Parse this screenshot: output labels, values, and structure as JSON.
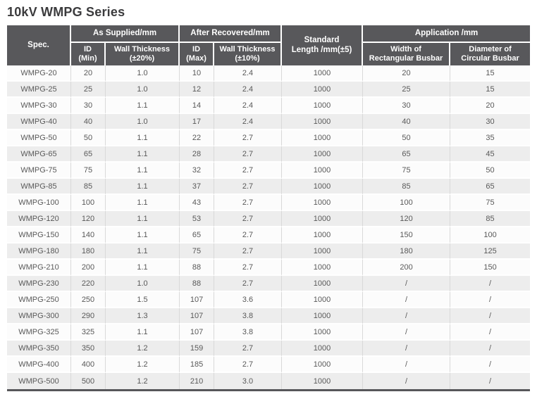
{
  "page": {
    "title": "10kV WMPG Series"
  },
  "colors": {
    "header_bg": "#58585B",
    "header_text": "#FFFFFF",
    "row_odd_bg": "#FCFCFC",
    "row_even_bg": "#EDEDED",
    "body_text": "#595959",
    "title_text": "#3B3B3D",
    "bottom_rule": "#57575A"
  },
  "table": {
    "header": {
      "spec": "Spec.",
      "as_supplied": "As Supplied/mm",
      "after_recovered": "After Recovered/mm",
      "standard_length": "Standard\nLength /mm(±5)",
      "application": "Application /mm",
      "id_min": "ID\n(Min)",
      "wall_thickness_20": "Wall Thickness\n(±20%)",
      "id_max": "ID\n(Max)",
      "wall_thickness_10": "Wall Thickness\n(±10%)",
      "width_rect_busbar": "Width of\nRectangular Busbar",
      "dia_circ_busbar": "Diameter of\nCircular Busbar"
    },
    "columns": [
      "spec",
      "id_min",
      "wall_thickness_20",
      "id_max",
      "wall_thickness_10",
      "standard_length",
      "width_rect_busbar",
      "dia_circ_busbar"
    ],
    "rows": [
      [
        "WMPG-20",
        "20",
        "1.0",
        "10",
        "2.4",
        "1000",
        "20",
        "15"
      ],
      [
        "WMPG-25",
        "25",
        "1.0",
        "12",
        "2.4",
        "1000",
        "25",
        "15"
      ],
      [
        "WMPG-30",
        "30",
        "1.1",
        "14",
        "2.4",
        "1000",
        "30",
        "20"
      ],
      [
        "WMPG-40",
        "40",
        "1.0",
        "17",
        "2.4",
        "1000",
        "40",
        "30"
      ],
      [
        "WMPG-50",
        "50",
        "1.1",
        "22",
        "2.7",
        "1000",
        "50",
        "35"
      ],
      [
        "WMPG-65",
        "65",
        "1.1",
        "28",
        "2.7",
        "1000",
        "65",
        "45"
      ],
      [
        "WMPG-75",
        "75",
        "1.1",
        "32",
        "2.7",
        "1000",
        "75",
        "50"
      ],
      [
        "WMPG-85",
        "85",
        "1.1",
        "37",
        "2.7",
        "1000",
        "85",
        "65"
      ],
      [
        "WMPG-100",
        "100",
        "1.1",
        "43",
        "2.7",
        "1000",
        "100",
        "75"
      ],
      [
        "WMPG-120",
        "120",
        "1.1",
        "53",
        "2.7",
        "1000",
        "120",
        "85"
      ],
      [
        "WMPG-150",
        "140",
        "1.1",
        "65",
        "2.7",
        "1000",
        "150",
        "100"
      ],
      [
        "WMPG-180",
        "180",
        "1.1",
        "75",
        "2.7",
        "1000",
        "180",
        "125"
      ],
      [
        "WMPG-210",
        "200",
        "1.1",
        "88",
        "2.7",
        "1000",
        "200",
        "150"
      ],
      [
        "WMPG-230",
        "220",
        "1.0",
        "88",
        "2.7",
        "1000",
        "/",
        "/"
      ],
      [
        "WMPG-250",
        "250",
        "1.5",
        "107",
        "3.6",
        "1000",
        "/",
        "/"
      ],
      [
        "WMPG-300",
        "290",
        "1.3",
        "107",
        "3.8",
        "1000",
        "/",
        "/"
      ],
      [
        "WMPG-325",
        "325",
        "1.1",
        "107",
        "3.8",
        "1000",
        "/",
        "/"
      ],
      [
        "WMPG-350",
        "350",
        "1.2",
        "159",
        "2.7",
        "1000",
        "/",
        "/"
      ],
      [
        "WMPG-400",
        "400",
        "1.2",
        "185",
        "2.7",
        "1000",
        "/",
        "/"
      ],
      [
        "WMPG-500",
        "500",
        "1.2",
        "210",
        "3.0",
        "1000",
        "/",
        "/"
      ]
    ]
  }
}
